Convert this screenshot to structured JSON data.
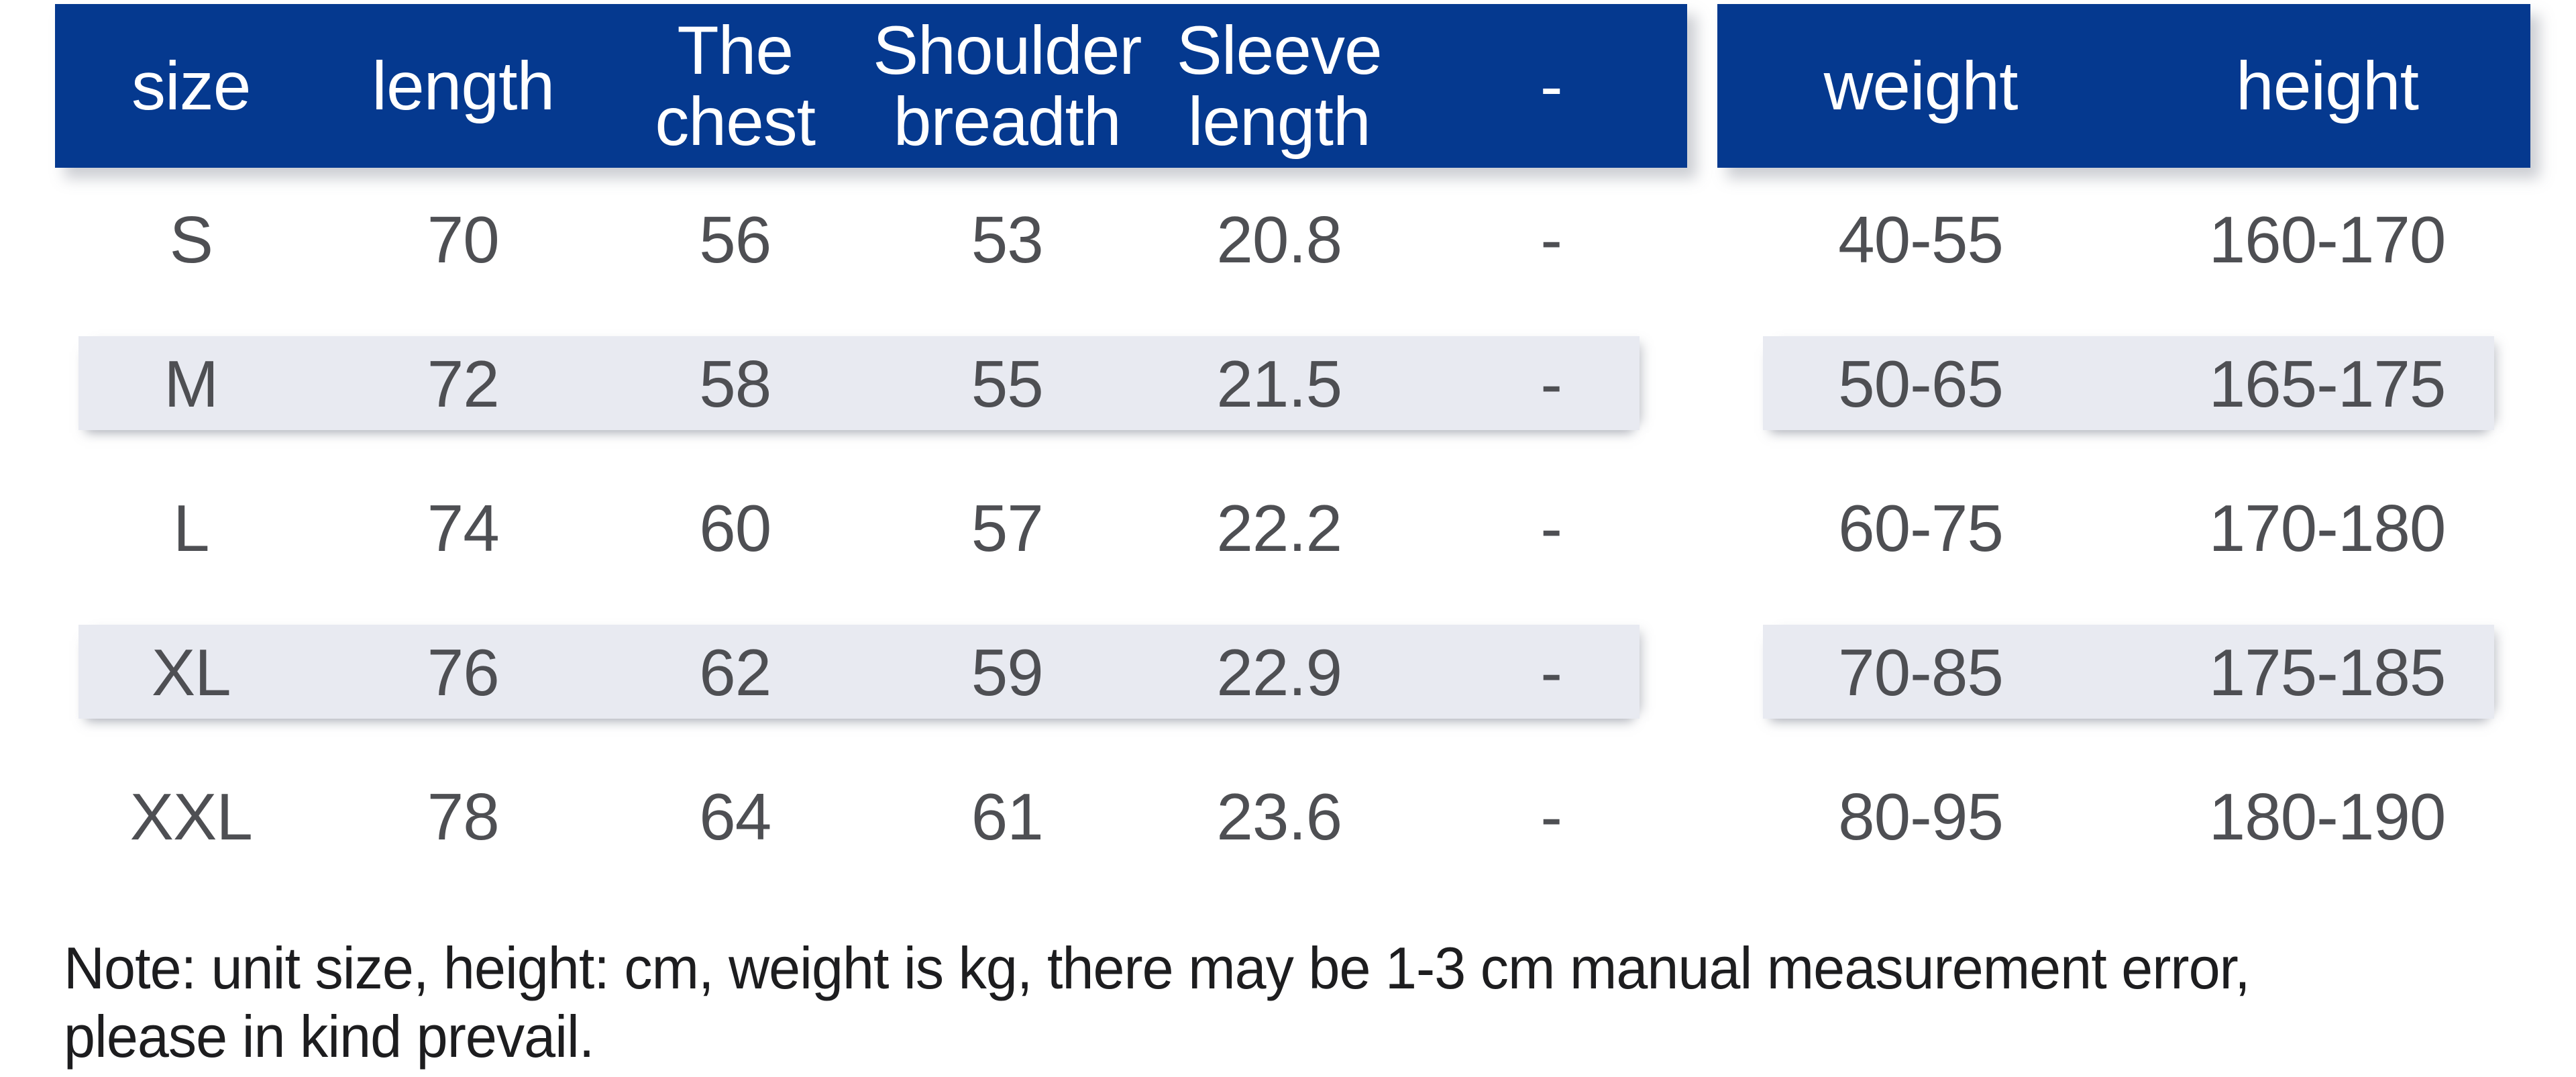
{
  "colors": {
    "header_bg": "#05398f",
    "header_text": "#ffffff",
    "row_stripe": "#e8eaf1",
    "value_text": "#4e4f53",
    "note_text": "#1d1d1f",
    "background": "#ffffff"
  },
  "display": {
    "left_header": [
      "size",
      "length",
      "The\nchest",
      "Shoulder\nbreadth",
      "Sleeve\nlength",
      "-"
    ],
    "right_header": [
      "weight",
      "height"
    ]
  },
  "chart_data": {
    "type": "table",
    "columns": [
      "size",
      "length",
      "The chest",
      "Shoulder breadth",
      "Sleeve length",
      "-",
      "weight",
      "height"
    ],
    "rows": [
      [
        "S",
        "70",
        "56",
        "53",
        "20.8",
        "-",
        "40-55",
        "160-170"
      ],
      [
        "M",
        "72",
        "58",
        "55",
        "21.5",
        "-",
        "50-65",
        "165-175"
      ],
      [
        "L",
        "74",
        "60",
        "57",
        "22.2",
        "-",
        "60-75",
        "170-180"
      ],
      [
        "XL",
        "76",
        "62",
        "59",
        "22.9",
        "-",
        "70-85",
        "175-185"
      ],
      [
        "XXL",
        "78",
        "64",
        "61",
        "23.6",
        "-",
        "80-95",
        "180-190"
      ]
    ],
    "striped_row_labels": [
      "M",
      "XL"
    ],
    "layout": {
      "grid": "off",
      "two_sections": true
    }
  },
  "note": "Note: unit size, height: cm, weight is kg, there may be 1-3 cm manual measurement error,\nplease in kind prevail."
}
